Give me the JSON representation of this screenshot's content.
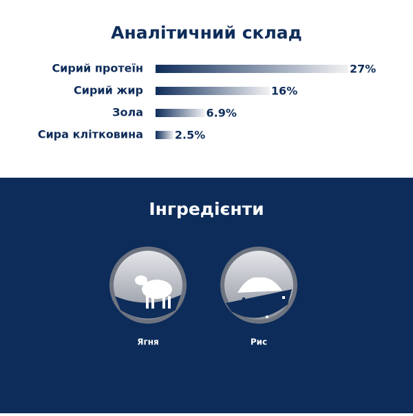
{
  "chart_data": {
    "type": "bar",
    "orientation": "horizontal",
    "title": "Аналітичний склад",
    "categories": [
      "Сирий протеїн",
      "Сирий жир",
      "Зола",
      "Сира клітковина"
    ],
    "values": [
      27,
      16,
      6.9,
      2.5
    ],
    "value_labels": [
      "27%",
      "16%",
      "6.9%",
      "2.5%"
    ],
    "color": "#0f2d5a"
  },
  "ingredients": {
    "title": "Інгредієнти",
    "items": [
      {
        "label": "Ягня"
      },
      {
        "label": "Рис"
      }
    ]
  }
}
